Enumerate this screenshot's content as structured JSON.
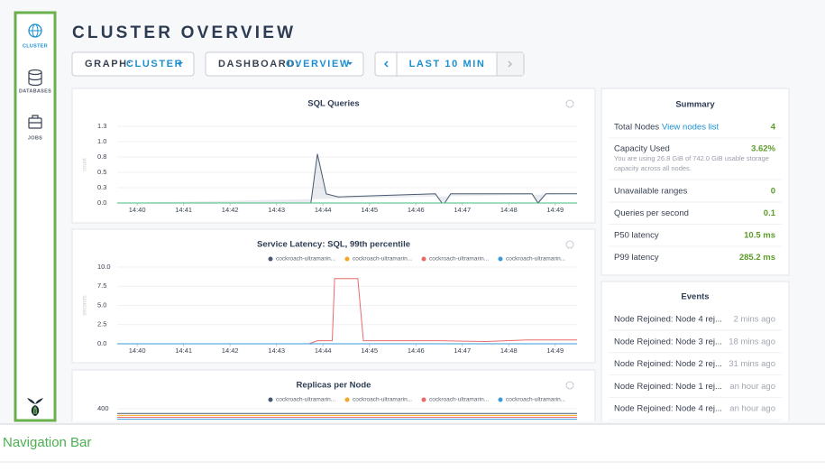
{
  "nav": [
    {
      "label": "CLUSTER"
    },
    {
      "label": "DATABASES"
    },
    {
      "label": "JOBS"
    }
  ],
  "caption": "Navigation Bar",
  "header": {
    "title": "CLUSTER OVERVIEW"
  },
  "controls": {
    "graph_label": "GRAPH:",
    "graph_value": "CLUSTER",
    "dashboard_label": "DASHBOARD:",
    "dashboard_value": "OVERVIEW",
    "time_range": "LAST 10 MIN"
  },
  "charts": [
    {
      "type": "line",
      "title": "SQL Queries",
      "y_label": "count",
      "xlim": [
        39.57,
        49.47
      ],
      "xticks": [
        {
          "value": 40,
          "label": "14:40"
        },
        {
          "value": 41,
          "label": "14:41"
        },
        {
          "value": 42,
          "label": "14:42"
        },
        {
          "value": 43,
          "label": "14:43"
        },
        {
          "value": 44,
          "label": "14:44"
        },
        {
          "value": 45,
          "label": "14:45"
        },
        {
          "value": 46,
          "label": "14:46"
        },
        {
          "value": 47,
          "label": "14:47"
        },
        {
          "value": 48,
          "label": "14:48"
        },
        {
          "value": 49,
          "label": "14:49"
        }
      ],
      "ylim": [
        0,
        1.25
      ],
      "yticks": [
        {
          "value": 1.25,
          "label": "1.3"
        },
        {
          "value": 1,
          "label": "1.0"
        },
        {
          "value": 0.75,
          "label": "0.8"
        },
        {
          "value": 0.5,
          "label": "0.5"
        },
        {
          "value": 0.25,
          "label": "0.3"
        },
        {
          "value": 0,
          "label": "0.0"
        }
      ],
      "x": [
        39.57,
        43.74,
        43.88,
        44.07,
        44.33,
        46.42,
        46.56,
        46.62,
        46.75,
        48.5,
        48.63,
        48.8,
        49.47
      ],
      "series": [
        {
          "color": "#475872",
          "values": [
            0,
            0,
            0.8,
            0.15,
            0.1,
            0.15,
            0,
            0,
            0.15,
            0.15,
            0,
            0.15,
            0.15
          ]
        },
        {
          "color": "#3fbf7f",
          "values": [
            0,
            0,
            0,
            0,
            0,
            0,
            0,
            0,
            0,
            0,
            0,
            0,
            0
          ]
        }
      ]
    },
    {
      "type": "line",
      "title": "Service Latency: SQL, 99th percentile",
      "y_label": "seconds",
      "xlim": [
        39.57,
        49.47
      ],
      "xticks": [
        {
          "value": 40,
          "label": "14:40"
        },
        {
          "value": 41,
          "label": "14:41"
        },
        {
          "value": 42,
          "label": "14:42"
        },
        {
          "value": 43,
          "label": "14:43"
        },
        {
          "value": 44,
          "label": "14:44"
        },
        {
          "value": 45,
          "label": "14:45"
        },
        {
          "value": 46,
          "label": "14:46"
        },
        {
          "value": 47,
          "label": "14:47"
        },
        {
          "value": 48,
          "label": "14:48"
        },
        {
          "value": 49,
          "label": "14:49"
        }
      ],
      "ylim": [
        0,
        10
      ],
      "yticks": [
        {
          "value": 10,
          "label": "10.0"
        },
        7.5,
        {
          "value": 5,
          "label": "5.0"
        },
        2.5,
        {
          "value": 0,
          "label": "0.0"
        }
      ],
      "x": [
        39.57,
        43.7,
        43.88,
        44.2,
        44.25,
        44.75,
        44.87,
        45.5,
        46.5,
        47.5,
        48.4,
        49.47
      ],
      "series": [
        {
          "name": "cockroach-ultramarin...",
          "color": "#475872",
          "values": [
            0,
            0,
            0,
            0,
            0,
            0,
            0,
            0,
            0,
            0,
            0,
            0
          ]
        },
        {
          "name": "cockroach-ultramarin...",
          "color": "#f5a623",
          "values": [
            0,
            0,
            0,
            0,
            0,
            0,
            0,
            0,
            0,
            0,
            0,
            0
          ]
        },
        {
          "name": "cockroach-ultramarin...",
          "color": "#e86a6a",
          "values": [
            0,
            0,
            0.4,
            0.4,
            8.5,
            8.5,
            0.4,
            0.4,
            0.4,
            0.3,
            0.5,
            0.5
          ]
        },
        {
          "name": "cockroach-ultramarin...",
          "color": "#3a9ad9",
          "values": [
            0,
            0,
            0,
            0,
            0,
            0,
            0,
            0,
            0,
            0,
            0,
            0
          ]
        }
      ]
    },
    {
      "type": "line",
      "title": "Replicas per Node",
      "xlim": [
        39.57,
        49.47
      ],
      "ylim": [
        0,
        420
      ],
      "yticks": [
        400
      ],
      "x": [
        39.57,
        49.47
      ],
      "series": [
        {
          "name": "cockroach-ultramarin...",
          "color": "#475872",
          "values": [
            395,
            395
          ]
        },
        {
          "name": "cockroach-ultramarin...",
          "color": "#f5a623",
          "values": [
            393,
            393
          ]
        },
        {
          "name": "cockroach-ultramarin...",
          "color": "#e86a6a",
          "values": [
            391,
            391
          ]
        },
        {
          "name": "cockroach-ultramarin...",
          "color": "#3a9ad9",
          "values": [
            389,
            389
          ]
        }
      ]
    }
  ],
  "summary": {
    "title": "Summary",
    "total_nodes": {
      "label": "Total Nodes",
      "link": "View nodes list",
      "value": "4"
    },
    "capacity": {
      "label": "Capacity Used",
      "value": "3.62%",
      "note_lines": [
        "You are using 26.8 GiB of 742.0 GiB usable storage",
        "capacity across all nodes."
      ]
    },
    "rows": [
      {
        "label": "Unavailable ranges",
        "value": "0"
      },
      {
        "label": "Queries per second",
        "value": "0.1"
      },
      {
        "label": "P50 latency",
        "value": "10.5 ms"
      },
      {
        "label": "P99 latency",
        "value": "285.2 ms"
      }
    ]
  },
  "events": {
    "title": "Events",
    "items": [
      {
        "text": "Node Rejoined: Node 4 rej...",
        "time": "2 mins ago"
      },
      {
        "text": "Node Rejoined: Node 3 rej...",
        "time": "18 mins ago"
      },
      {
        "text": "Node Rejoined: Node 2 rej...",
        "time": "31 mins ago"
      },
      {
        "text": "Node Rejoined: Node 1 rej...",
        "time": "an hour ago"
      },
      {
        "text": "Node Rejoined: Node 4 rej...",
        "time": "an hour ago"
      }
    ]
  }
}
